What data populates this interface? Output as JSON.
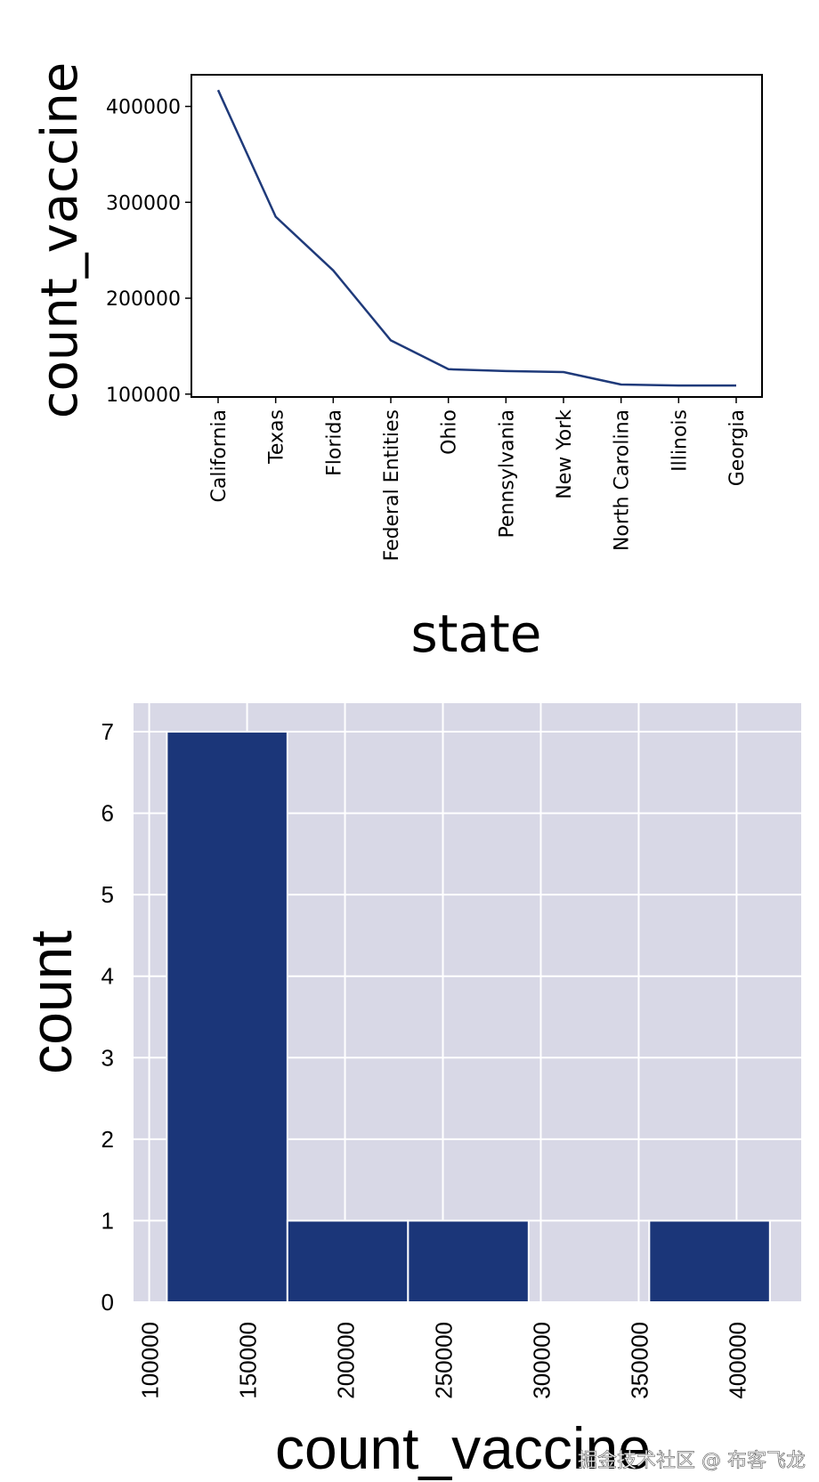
{
  "chart_data": [
    {
      "type": "line",
      "xlabel": "state",
      "ylabel": "count_vaccine",
      "categories": [
        "California",
        "Texas",
        "Florida",
        "Federal Entities",
        "Ohio",
        "Pennsylvania",
        "New York",
        "North Carolina",
        "Illinois",
        "Georgia"
      ],
      "values": [
        417000,
        285000,
        229000,
        156000,
        126000,
        124000,
        123000,
        110000,
        109000,
        109000
      ],
      "ylim": [
        97000,
        433000
      ],
      "yticks": [
        100000,
        200000,
        300000,
        400000
      ],
      "line_color": "#1f3a7a",
      "grid": false
    },
    {
      "type": "bar",
      "subtype": "histogram",
      "xlabel": "count_vaccine",
      "ylabel": "count",
      "bins": [
        {
          "start": 109000,
          "end": 170600,
          "count": 7
        },
        {
          "start": 170600,
          "end": 232200,
          "count": 1
        },
        {
          "start": 232200,
          "end": 293800,
          "count": 1
        },
        {
          "start": 293800,
          "end": 355400,
          "count": 0
        },
        {
          "start": 355400,
          "end": 417000,
          "count": 1
        }
      ],
      "xlim": [
        92000,
        433000
      ],
      "xticks": [
        100000,
        150000,
        200000,
        250000,
        300000,
        350000,
        400000
      ],
      "ylim": [
        0,
        7.35
      ],
      "yticks": [
        0,
        1,
        2,
        3,
        4,
        5,
        6,
        7
      ],
      "bar_color": "#1b3679",
      "background_color": "#d8d8e6",
      "grid": true
    }
  ],
  "watermark": "掘金技术社区 @ 布客飞龙"
}
